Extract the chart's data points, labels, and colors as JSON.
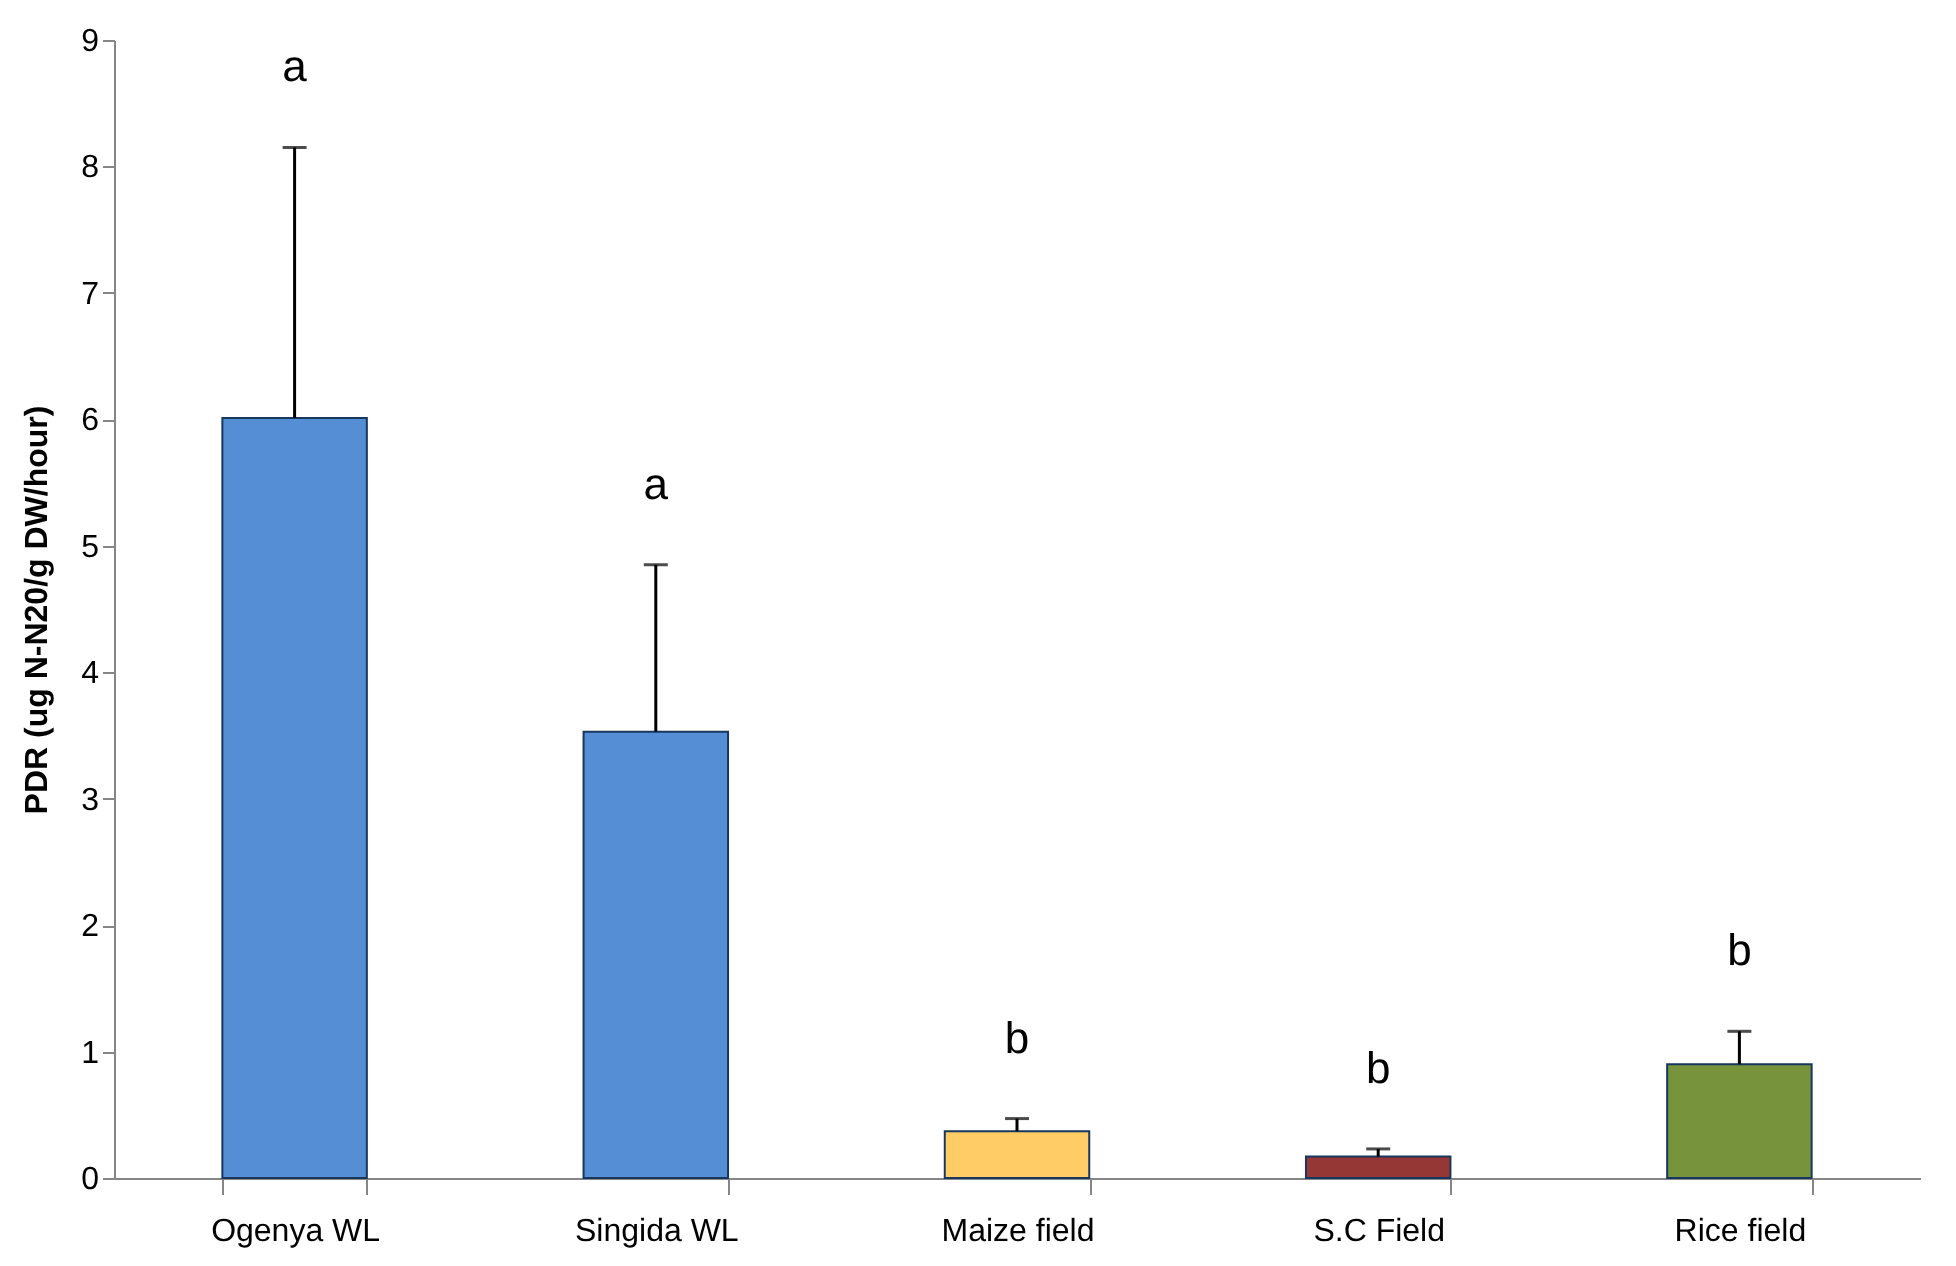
{
  "chart_data": {
    "type": "bar",
    "ylabel": "PDR (ug N-N20/g DW/hour)",
    "categories": [
      "Ogenya WL",
      "Singida WL",
      "Maize field",
      "S.C Field",
      "Rice field"
    ],
    "values": [
      6.01,
      3.53,
      0.37,
      0.17,
      0.9
    ],
    "errors": [
      2.14,
      1.32,
      0.1,
      0.06,
      0.26
    ],
    "colors": [
      "#558ed5",
      "#558ed5",
      "#ffcc66",
      "#953735",
      "#77933c"
    ],
    "ylim": [
      0,
      9
    ],
    "yticks": [
      0,
      1,
      2,
      3,
      4,
      5,
      6,
      7,
      8,
      9
    ],
    "grid": false,
    "annotations": [
      "a",
      "a",
      "b",
      "b",
      "b"
    ]
  }
}
